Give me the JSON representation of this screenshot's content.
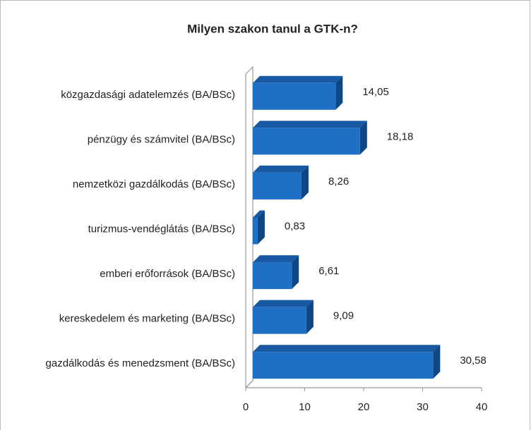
{
  "chart_data": {
    "type": "bar",
    "orientation": "horizontal",
    "title": "Milyen szakon tanul a GTK-n?",
    "categories": [
      "közgazdasági adatelemzés (BA/BSc)",
      "pénzügy és számvitel (BA/BSc)",
      "nemzetközi gazdálkodás (BA/BSc)",
      "turizmus-vendéglátás (BA/BSc)",
      "emberi erőforrások (BA/BSc)",
      "kereskedelem és marketing (BA/BSc)",
      "gazdálkodás és menedzsment (BA/BSc)"
    ],
    "values": [
      14.05,
      18.18,
      8.26,
      0.83,
      6.61,
      9.09,
      30.58
    ],
    "value_labels": [
      "14,05",
      "18,18",
      "8,26",
      "0,83",
      "6,61",
      "9,09",
      "30,58"
    ],
    "color": "#1f6fc5",
    "xlim": [
      0,
      40
    ],
    "xticks": [
      0,
      10,
      20,
      30,
      40
    ]
  }
}
